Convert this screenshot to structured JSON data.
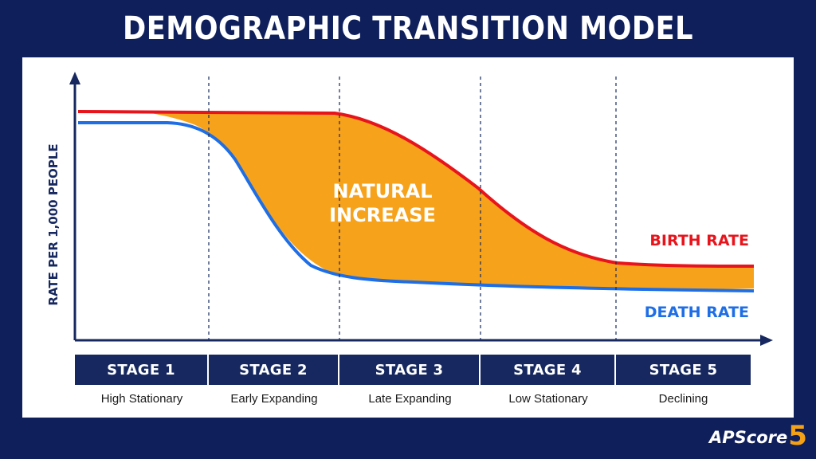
{
  "title": "DEMOGRAPHIC TRANSITION MODEL",
  "y_axis_label": "RATE PER 1,000 PEOPLE",
  "area_label_line1": "NATURAL",
  "area_label_line2": "INCREASE",
  "series_labels": {
    "birth": "BIRTH RATE",
    "death": "DEATH RATE"
  },
  "colors": {
    "birth_rate": "#e8141c",
    "death_rate": "#1e6ee6",
    "natural_increase": "#f7a21b",
    "axis": "#16285f",
    "background": "#0f1f5c"
  },
  "stages": [
    {
      "label": "STAGE 1",
      "description": "High Stationary"
    },
    {
      "label": "STAGE 2",
      "description": "Early Expanding"
    },
    {
      "label": "STAGE 3",
      "description": "Late Expanding"
    },
    {
      "label": "STAGE 4",
      "description": "Low Stationary"
    },
    {
      "label": "STAGE 5",
      "description": "Declining"
    }
  ],
  "logo": {
    "text": "APScore",
    "number": "5"
  }
}
